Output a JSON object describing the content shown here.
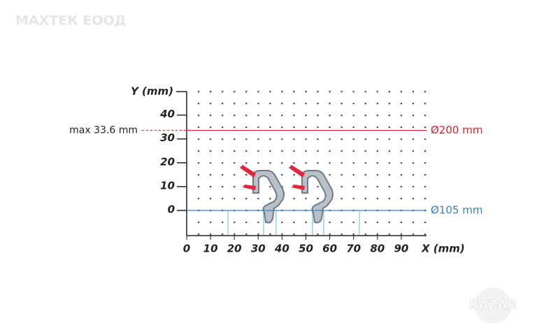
{
  "watermark": "МАХТЕК ЕООД",
  "logo": "BAZAR",
  "y_axis": {
    "label": "Y (mm)",
    "ticks": [
      0,
      10,
      20,
      30,
      40
    ]
  },
  "x_axis": {
    "label": "X (mm)",
    "ticks": [
      0,
      10,
      20,
      30,
      40,
      50,
      60,
      70,
      80,
      90
    ]
  },
  "max_line": {
    "value": 33.6,
    "label": "max 33.6 mm",
    "diameter": "Ø200 mm",
    "color": "#e0202a"
  },
  "base_line": {
    "value": 0,
    "diameter": "Ø105 mm",
    "color": "#3a7fc1"
  }
}
